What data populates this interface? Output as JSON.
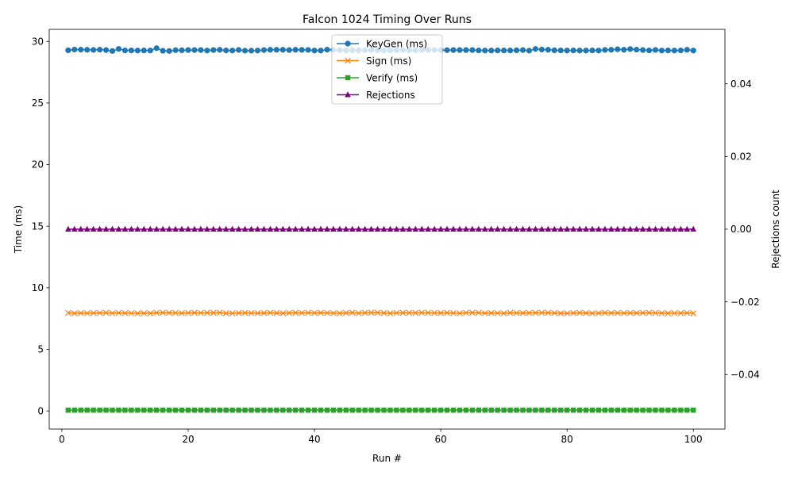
{
  "chart_data": {
    "type": "line",
    "title": "Falcon 1024 Timing Over Runs",
    "xlabel": "Run #",
    "ylabel": "Time (ms)",
    "y2label": "Rejections count",
    "xlim": [
      -2,
      105
    ],
    "ylim": [
      -1.47,
      30.98
    ],
    "y2lim": [
      -0.055,
      0.055
    ],
    "xticks": [
      0,
      20,
      40,
      60,
      80,
      100
    ],
    "yticks": [
      0,
      5,
      10,
      15,
      20,
      25,
      30
    ],
    "y2ticks": [
      -0.04,
      -0.02,
      0.0,
      0.02,
      0.04
    ],
    "y2tick_labels": [
      "−0.04",
      "−0.02",
      "0.00",
      "0.02",
      "0.04"
    ],
    "grid": false,
    "legend_placement": "upper center",
    "x": [
      1,
      2,
      3,
      4,
      5,
      6,
      7,
      8,
      9,
      10,
      11,
      12,
      13,
      14,
      15,
      16,
      17,
      18,
      19,
      20,
      21,
      22,
      23,
      24,
      25,
      26,
      27,
      28,
      29,
      30,
      31,
      32,
      33,
      34,
      35,
      36,
      37,
      38,
      39,
      40,
      41,
      42,
      43,
      44,
      45,
      46,
      47,
      48,
      49,
      50,
      51,
      52,
      53,
      54,
      55,
      56,
      57,
      58,
      59,
      60,
      61,
      62,
      63,
      64,
      65,
      66,
      67,
      68,
      69,
      70,
      71,
      72,
      73,
      74,
      75,
      76,
      77,
      78,
      79,
      80,
      81,
      82,
      83,
      84,
      85,
      86,
      87,
      88,
      89,
      90,
      91,
      92,
      93,
      94,
      95,
      96,
      97,
      98,
      99,
      100
    ],
    "series": [
      {
        "name": "KeyGen (ms)",
        "axis": "left",
        "color": "#1f77b4",
        "marker": "circle",
        "values": [
          29.28,
          29.34,
          29.33,
          29.32,
          29.31,
          29.33,
          29.3,
          29.22,
          29.39,
          29.27,
          29.27,
          29.26,
          29.27,
          29.26,
          29.45,
          29.24,
          29.22,
          29.29,
          29.28,
          29.3,
          29.3,
          29.3,
          29.26,
          29.3,
          29.32,
          29.27,
          29.26,
          29.31,
          29.25,
          29.25,
          29.26,
          29.3,
          29.32,
          29.32,
          29.32,
          29.3,
          29.32,
          29.31,
          29.31,
          29.26,
          29.26,
          29.33,
          29.32,
          29.3,
          29.26,
          29.28,
          29.28,
          29.29,
          29.3,
          29.28,
          29.26,
          29.28,
          29.29,
          29.3,
          29.28,
          29.28,
          29.3,
          29.31,
          29.31,
          29.3,
          29.29,
          29.3,
          29.3,
          29.3,
          29.3,
          29.27,
          29.26,
          29.26,
          29.27,
          29.27,
          29.27,
          29.28,
          29.3,
          29.25,
          29.39,
          29.34,
          29.32,
          29.28,
          29.27,
          29.26,
          29.27,
          29.26,
          29.26,
          29.27,
          29.26,
          29.31,
          29.32,
          29.36,
          29.32,
          29.38,
          29.33,
          29.3,
          29.27,
          29.31,
          29.26,
          29.27,
          29.26,
          29.27,
          29.32,
          29.26
        ]
      },
      {
        "name": "Sign (ms)",
        "axis": "left",
        "color": "#ff7f0e",
        "marker": "x",
        "values": [
          7.96,
          7.93,
          7.95,
          7.94,
          7.95,
          7.96,
          7.97,
          7.94,
          7.96,
          7.95,
          7.94,
          7.93,
          7.94,
          7.93,
          7.97,
          7.98,
          7.97,
          7.96,
          7.94,
          7.96,
          7.97,
          7.96,
          7.97,
          7.97,
          7.98,
          7.93,
          7.93,
          7.95,
          7.96,
          7.94,
          7.94,
          7.95,
          7.97,
          7.95,
          7.93,
          7.96,
          7.97,
          7.96,
          7.97,
          7.96,
          7.97,
          7.96,
          7.94,
          7.93,
          7.96,
          7.98,
          7.94,
          7.97,
          7.98,
          7.98,
          7.95,
          7.93,
          7.96,
          7.97,
          7.97,
          7.96,
          7.98,
          7.97,
          7.96,
          7.95,
          7.97,
          7.94,
          7.93,
          7.97,
          7.98,
          7.98,
          7.94,
          7.95,
          7.94,
          7.93,
          7.97,
          7.96,
          7.95,
          7.96,
          7.97,
          7.98,
          7.97,
          7.95,
          7.93,
          7.93,
          7.95,
          7.97,
          7.95,
          7.93,
          7.94,
          7.97,
          7.95,
          7.96,
          7.94,
          7.96,
          7.95,
          7.96,
          7.97,
          7.96,
          7.94,
          7.93,
          7.94,
          7.94,
          7.96,
          7.93
        ]
      },
      {
        "name": "Verify (ms)",
        "axis": "left",
        "color": "#2ca02c",
        "marker": "square",
        "values": [
          0.06,
          0.06,
          0.06,
          0.06,
          0.06,
          0.06,
          0.06,
          0.06,
          0.06,
          0.06,
          0.06,
          0.06,
          0.06,
          0.06,
          0.06,
          0.06,
          0.06,
          0.06,
          0.06,
          0.06,
          0.06,
          0.06,
          0.06,
          0.06,
          0.06,
          0.06,
          0.06,
          0.06,
          0.06,
          0.06,
          0.06,
          0.06,
          0.06,
          0.06,
          0.06,
          0.06,
          0.06,
          0.06,
          0.06,
          0.06,
          0.06,
          0.06,
          0.06,
          0.06,
          0.06,
          0.06,
          0.06,
          0.06,
          0.06,
          0.06,
          0.06,
          0.06,
          0.06,
          0.06,
          0.06,
          0.06,
          0.06,
          0.06,
          0.06,
          0.06,
          0.06,
          0.06,
          0.06,
          0.06,
          0.06,
          0.06,
          0.06,
          0.06,
          0.06,
          0.06,
          0.06,
          0.06,
          0.06,
          0.06,
          0.06,
          0.06,
          0.06,
          0.06,
          0.06,
          0.06,
          0.06,
          0.06,
          0.06,
          0.06,
          0.06,
          0.06,
          0.06,
          0.06,
          0.06,
          0.06,
          0.06,
          0.06,
          0.06,
          0.06,
          0.06,
          0.06,
          0.06,
          0.06,
          0.06,
          0.06
        ]
      },
      {
        "name": "Rejections",
        "axis": "right",
        "color": "#800080",
        "marker": "triangle",
        "values": [
          0,
          0,
          0,
          0,
          0,
          0,
          0,
          0,
          0,
          0,
          0,
          0,
          0,
          0,
          0,
          0,
          0,
          0,
          0,
          0,
          0,
          0,
          0,
          0,
          0,
          0,
          0,
          0,
          0,
          0,
          0,
          0,
          0,
          0,
          0,
          0,
          0,
          0,
          0,
          0,
          0,
          0,
          0,
          0,
          0,
          0,
          0,
          0,
          0,
          0,
          0,
          0,
          0,
          0,
          0,
          0,
          0,
          0,
          0,
          0,
          0,
          0,
          0,
          0,
          0,
          0,
          0,
          0,
          0,
          0,
          0,
          0,
          0,
          0,
          0,
          0,
          0,
          0,
          0,
          0,
          0,
          0,
          0,
          0,
          0,
          0,
          0,
          0,
          0,
          0,
          0,
          0,
          0,
          0,
          0,
          0,
          0,
          0,
          0,
          0
        ]
      }
    ]
  }
}
